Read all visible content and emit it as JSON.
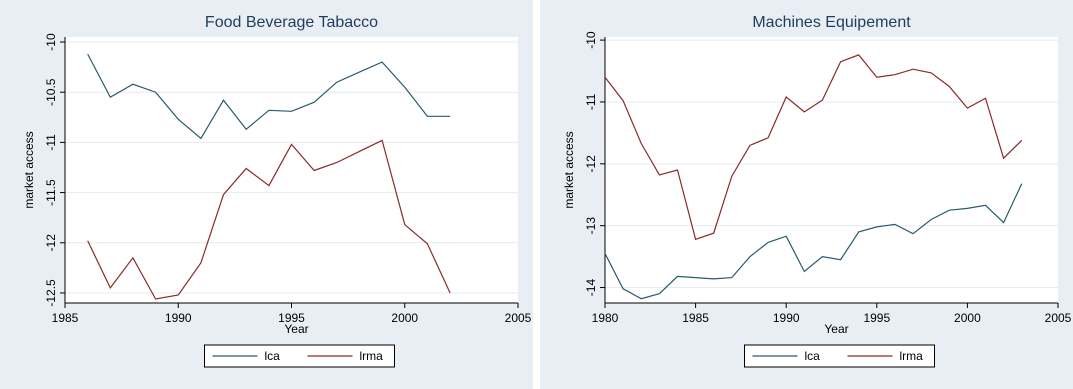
{
  "chart_data": [
    {
      "type": "line",
      "title": "Food Beverage Tabacco",
      "xlabel": "Year",
      "ylabel": "market access",
      "xlim": [
        1985,
        2005
      ],
      "ylim": [
        -12.6,
        -9.95
      ],
      "xticks": [
        1985,
        1990,
        1995,
        2000,
        2005
      ],
      "yticks": [
        -10,
        -10.5,
        -11,
        -11.5,
        -12,
        -12.5
      ],
      "ytick_labels": [
        "-10",
        "-10.5",
        "-11",
        "-11.5",
        "-12",
        "-12.5"
      ],
      "grid": true,
      "legend_position": "bottom",
      "series": [
        {
          "name": "lca",
          "color": "#2a5a6e",
          "x": [
            1986,
            1987,
            1988,
            1989,
            1990,
            1991,
            1992,
            1993,
            1994,
            1995,
            1996,
            1997,
            1998,
            1999,
            2000,
            2001,
            2002
          ],
          "y": [
            -10.12,
            -10.55,
            -10.42,
            -10.5,
            -10.77,
            -10.96,
            -10.58,
            -10.87,
            -10.68,
            -10.69,
            -10.6,
            -10.4,
            -10.3,
            -10.2,
            -10.45,
            -10.74,
            -10.74
          ]
        },
        {
          "name": "lrma",
          "color": "#8b2a2a",
          "x": [
            1986,
            1987,
            1988,
            1989,
            1990,
            1991,
            1992,
            1993,
            1994,
            1995,
            1996,
            1997,
            1998,
            1999,
            2000,
            2001,
            2002
          ],
          "y": [
            -11.98,
            -12.45,
            -12.15,
            -12.56,
            -12.52,
            -12.2,
            -11.52,
            -11.26,
            -11.43,
            -11.02,
            -11.28,
            -11.2,
            -11.09,
            -10.98,
            -11.82,
            -12.01,
            -12.5
          ]
        }
      ]
    },
    {
      "type": "line",
      "title": "Machines Equipement",
      "xlabel": "Year",
      "ylabel": "market access",
      "xlim": [
        1980,
        2005
      ],
      "ylim": [
        -14.25,
        -9.95
      ],
      "xticks": [
        1980,
        1985,
        1990,
        1995,
        2000,
        2005
      ],
      "yticks": [
        -10,
        -11,
        -12,
        -13,
        -14
      ],
      "ytick_labels": [
        "-10",
        "-11",
        "-12",
        "-13",
        "-14"
      ],
      "grid": true,
      "legend_position": "bottom",
      "series": [
        {
          "name": "lca",
          "color": "#2a5a6e",
          "x": [
            1980,
            1981,
            1982,
            1983,
            1984,
            1985,
            1986,
            1987,
            1988,
            1989,
            1990,
            1991,
            1992,
            1993,
            1994,
            1995,
            1996,
            1997,
            1998,
            1999,
            2000,
            2001,
            2002,
            2003
          ],
          "y": [
            -13.45,
            -14.02,
            -14.18,
            -14.1,
            -13.82,
            -13.84,
            -13.86,
            -13.84,
            -13.5,
            -13.27,
            -13.17,
            -13.74,
            -13.5,
            -13.55,
            -13.1,
            -13.02,
            -12.98,
            -13.13,
            -12.9,
            -12.75,
            -12.72,
            -12.67,
            -12.95,
            -12.32
          ]
        },
        {
          "name": "lrma",
          "color": "#8b2a2a",
          "x": [
            1980,
            1981,
            1982,
            1983,
            1984,
            1985,
            1986,
            1987,
            1988,
            1989,
            1990,
            1991,
            1992,
            1993,
            1994,
            1995,
            1996,
            1997,
            1998,
            1999,
            2000,
            2001,
            2002,
            2003
          ],
          "y": [
            -10.6,
            -10.98,
            -11.67,
            -12.18,
            -12.1,
            -13.22,
            -13.12,
            -12.2,
            -11.7,
            -11.58,
            -10.92,
            -11.16,
            -10.97,
            -10.35,
            -10.24,
            -10.6,
            -10.56,
            -10.47,
            -10.53,
            -10.75,
            -11.1,
            -10.94,
            -11.91,
            -11.62
          ]
        }
      ]
    }
  ]
}
